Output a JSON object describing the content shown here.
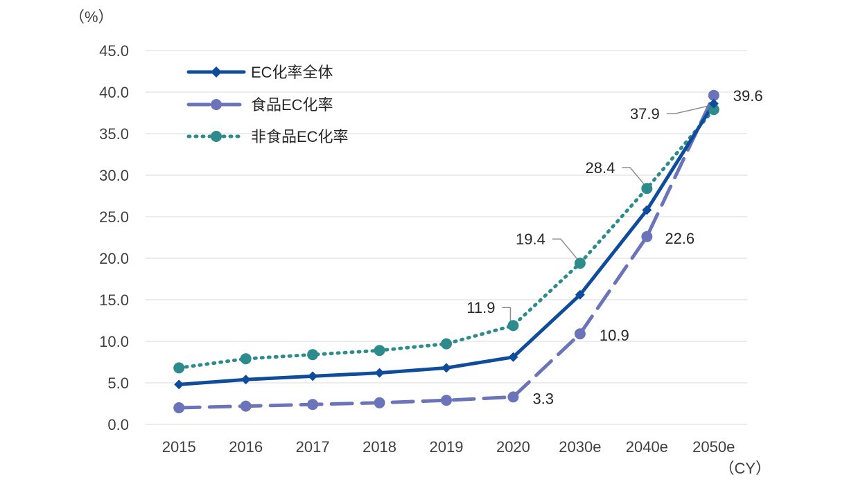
{
  "chart_data": {
    "type": "line",
    "title": "",
    "y_unit": "（%）",
    "x_unit": "（CY）",
    "categories": [
      "2015",
      "2016",
      "2017",
      "2018",
      "2019",
      "2020",
      "2030e",
      "2040e",
      "2050e"
    ],
    "ylim": [
      0,
      45
    ],
    "yticks": [
      "0.0",
      "5.0",
      "10.0",
      "15.0",
      "20.0",
      "25.0",
      "30.0",
      "35.0",
      "40.0",
      "45.0"
    ],
    "grid": true,
    "legend_position": "top-left",
    "series": [
      {
        "name": "EC化率全体",
        "color": "#0F4C9B",
        "style": "solid",
        "marker": "diamond",
        "values": [
          4.8,
          5.4,
          5.8,
          6.2,
          6.8,
          8.1,
          15.6,
          25.8,
          38.6
        ]
      },
      {
        "name": "食品EC化率",
        "color": "#6B74B8",
        "style": "dashed",
        "marker": "circle",
        "values": [
          2.0,
          2.2,
          2.4,
          2.6,
          2.9,
          3.3,
          10.9,
          22.6,
          39.6
        ]
      },
      {
        "name": "非食品EC化率",
        "color": "#2E8B8B",
        "style": "dotted",
        "marker": "circle",
        "values": [
          6.8,
          7.9,
          8.4,
          8.9,
          9.7,
          11.9,
          19.4,
          28.4,
          37.9
        ]
      }
    ],
    "annotations": [
      {
        "series": 1,
        "index": 5,
        "text": "3.3"
      },
      {
        "series": 1,
        "index": 6,
        "text": "10.9"
      },
      {
        "series": 1,
        "index": 7,
        "text": "22.6"
      },
      {
        "series": 1,
        "index": 8,
        "text": "39.6"
      },
      {
        "series": 2,
        "index": 5,
        "text": "11.9"
      },
      {
        "series": 2,
        "index": 6,
        "text": "19.4"
      },
      {
        "series": 2,
        "index": 7,
        "text": "28.4"
      },
      {
        "series": 2,
        "index": 8,
        "text": "37.9"
      }
    ]
  }
}
